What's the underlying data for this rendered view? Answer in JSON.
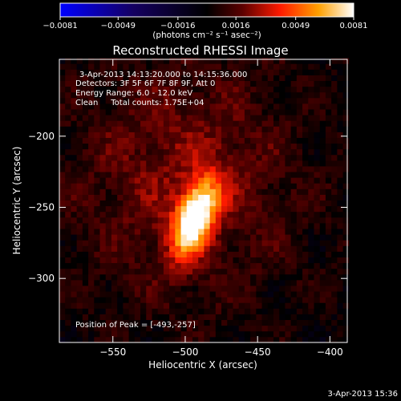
{
  "chart_data": {
    "type": "heatmap",
    "title": "Reconstructed RHESSI Image",
    "xlabel": "Heliocentric X (arcsec)",
    "ylabel": "Heliocentric Y (arcsec)",
    "xlim": [
      -587,
      -388
    ],
    "ylim": [
      -345,
      -146
    ],
    "x_ticks": [
      {
        "value": -550,
        "label": "−550"
      },
      {
        "value": -500,
        "label": "−500"
      },
      {
        "value": -450,
        "label": "−450"
      },
      {
        "value": -400,
        "label": "−400"
      }
    ],
    "y_ticks": [
      {
        "value": -200,
        "label": "−200"
      },
      {
        "value": -250,
        "label": "−250"
      },
      {
        "value": -300,
        "label": "−300"
      }
    ],
    "colorbar": {
      "range": [
        -0.0081,
        0.0081
      ],
      "ticks": [
        {
          "value": -0.0081,
          "label": "−0.0081"
        },
        {
          "value": -0.0049,
          "label": "−0.0049"
        },
        {
          "value": -0.0016,
          "label": "−0.0016"
        },
        {
          "value": 0.0016,
          "label": "0.0016"
        },
        {
          "value": 0.0049,
          "label": "0.0049"
        },
        {
          "value": 0.0081,
          "label": "0.0081"
        }
      ],
      "units": "(photons cm⁻² s⁻¹ asec⁻²)",
      "colormap": [
        "#0000ff",
        "#1a0070",
        "#000000",
        "#5a0000",
        "#ff2000",
        "#ff9a00",
        "#ffffff"
      ]
    },
    "annotations": [
      "3-Apr-2013 14:13:20.000 to 14:15:36.000",
      "Detectors: 3F 5F 6F 7F 8F 9F, Att 0",
      "Energy Range: 6.0 - 12.0 keV",
      "Clean     Total counts: 1.75E+04",
      "Position of Peak = [-493,-257]"
    ],
    "peak": {
      "x": -493,
      "y": -257
    },
    "source": {
      "peak_value": 0.0081,
      "core_sigma_x": 9,
      "core_sigma_y": 20,
      "rotation_deg": 20,
      "halo_sigma_x": 55,
      "halo_sigma_y": 60,
      "halo_center_x": -500,
      "halo_center_y": -230,
      "halo_value": 0.0022
    }
  },
  "footer": {
    "date": "3-Apr-2013 15:36"
  }
}
